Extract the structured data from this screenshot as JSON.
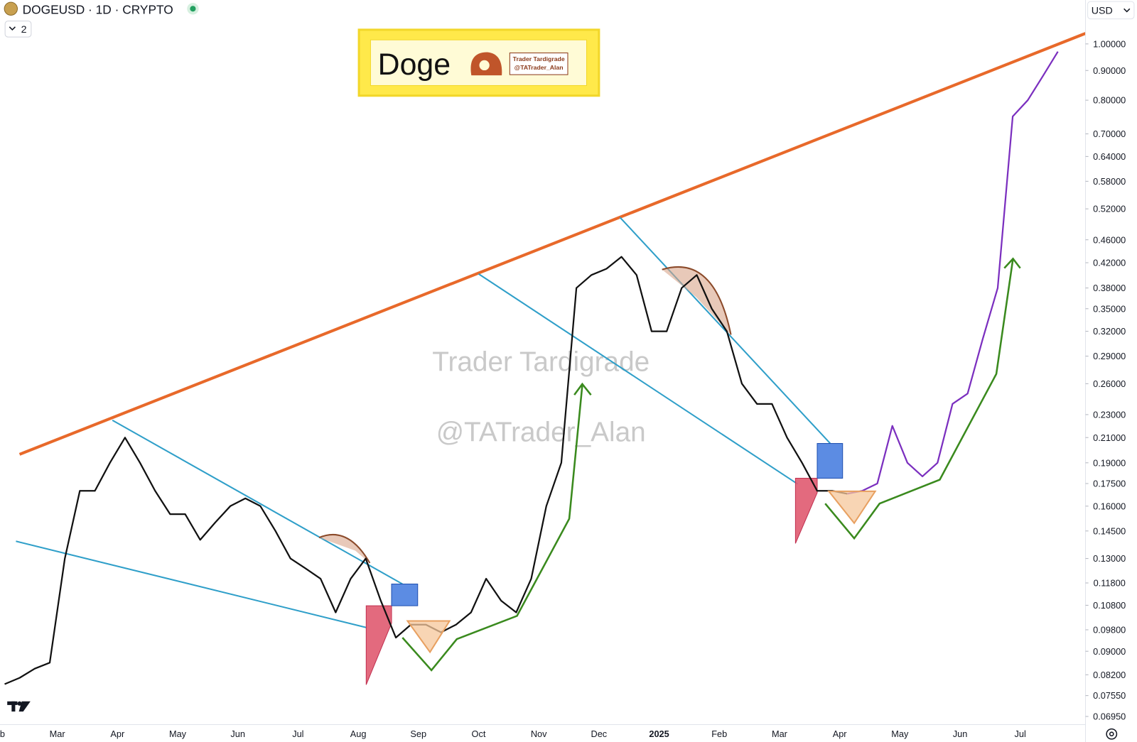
{
  "header": {
    "symbol": "DOGEUSD · 1D · CRYPTO",
    "pane_count": "2",
    "currency": "USD"
  },
  "logo": {
    "title": "Doge",
    "line1": "Trader Tardigrade",
    "line2": "@TATrader_Alan"
  },
  "watermark": {
    "line1": "Trader Tardigrade",
    "line2": "@TATrader_Alan"
  },
  "chart_data": {
    "type": "line",
    "log_scale": true,
    "grid": false,
    "categories": [
      "Feb",
      null,
      null,
      null,
      "Mar",
      null,
      null,
      null,
      "Apr",
      null,
      null,
      null,
      "May",
      null,
      null,
      null,
      "Jun",
      null,
      null,
      null,
      "Jul",
      null,
      null,
      null,
      "Aug",
      null,
      null,
      null,
      "Sep",
      null,
      null,
      null,
      "Oct",
      null,
      null,
      null,
      "Nov",
      null,
      null,
      null,
      "Dec",
      null,
      null,
      null,
      "2025",
      null,
      null,
      null,
      "Feb",
      null,
      null,
      null,
      "Mar",
      null,
      null,
      null,
      "Apr",
      null,
      null,
      null,
      "May",
      null,
      null,
      null,
      "Jun",
      null,
      null,
      null,
      "Jul",
      null,
      null
    ],
    "series": [
      {
        "color": "#111111",
        "values": [
          0.079,
          0.081,
          0.084,
          0.086,
          0.13,
          0.17,
          0.17,
          0.19,
          0.21,
          0.19,
          0.17,
          0.155,
          0.155,
          0.14,
          0.15,
          0.16,
          0.165,
          0.16,
          0.145,
          0.13,
          0.125,
          0.12,
          0.105,
          0.12,
          0.13,
          0.11,
          0.095,
          0.1,
          0.1,
          0.097,
          0.1,
          0.105,
          0.12,
          0.11,
          0.105,
          0.12,
          0.16,
          0.19,
          0.38,
          0.4,
          0.41,
          0.43,
          0.4,
          0.32,
          0.32,
          0.38,
          0.4,
          0.35,
          0.32,
          0.26,
          0.24,
          0.24,
          0.21,
          0.19,
          0.17,
          0.17,
          0.168,
          null,
          null,
          null,
          null,
          null,
          null,
          null,
          null,
          null,
          null,
          null,
          null,
          null,
          null
        ]
      },
      {
        "color": "#7b2fbf",
        "values": [
          null,
          null,
          null,
          null,
          null,
          null,
          null,
          null,
          null,
          null,
          null,
          null,
          null,
          null,
          null,
          null,
          null,
          null,
          null,
          null,
          null,
          null,
          null,
          null,
          null,
          null,
          null,
          null,
          null,
          null,
          null,
          null,
          null,
          null,
          null,
          null,
          null,
          null,
          null,
          null,
          null,
          null,
          null,
          null,
          null,
          null,
          null,
          null,
          null,
          null,
          null,
          null,
          null,
          null,
          null,
          null,
          0.168,
          0.17,
          0.175,
          0.22,
          0.19,
          0.18,
          0.19,
          0.24,
          0.25,
          0.31,
          0.38,
          0.75,
          0.8,
          0.88,
          0.97
        ]
      }
    ],
    "ylim": [
      0.0673,
      1.19
    ],
    "yticks": [
      {
        "value": 1,
        "label": "1.00000"
      },
      {
        "value": 0.9,
        "label": "0.90000"
      },
      {
        "value": 0.8,
        "label": "0.80000"
      },
      {
        "value": 0.7,
        "label": "0.70000"
      },
      {
        "value": 0.64,
        "label": "0.64000"
      },
      {
        "value": 0.58,
        "label": "0.58000"
      },
      {
        "value": 0.52,
        "label": "0.52000"
      },
      {
        "value": 0.46,
        "label": "0.46000"
      },
      {
        "value": 0.42,
        "label": "0.42000"
      },
      {
        "value": 0.38,
        "label": "0.38000"
      },
      {
        "value": 0.35,
        "label": "0.35000"
      },
      {
        "value": 0.32,
        "label": "0.32000"
      },
      {
        "value": 0.29,
        "label": "0.29000"
      },
      {
        "value": 0.26,
        "label": "0.26000"
      },
      {
        "value": 0.23,
        "label": "0.23000"
      },
      {
        "value": 0.21,
        "label": "0.21000"
      },
      {
        "value": 0.19,
        "label": "0.19000"
      },
      {
        "value": 0.175,
        "label": "0.17500"
      },
      {
        "value": 0.16,
        "label": "0.16000"
      },
      {
        "value": 0.145,
        "label": "0.14500"
      },
      {
        "value": 0.13,
        "label": "0.13000"
      },
      {
        "value": 0.118,
        "label": "0.11800"
      },
      {
        "value": 0.108,
        "label": "0.10800"
      },
      {
        "value": 0.098,
        "label": "0.09800"
      },
      {
        "value": 0.09,
        "label": "0.09000"
      },
      {
        "value": 0.082,
        "label": "0.08200"
      },
      {
        "value": 0.0755,
        "label": "0.07550"
      },
      {
        "value": 0.0695,
        "label": "0.06950"
      }
    ]
  }
}
